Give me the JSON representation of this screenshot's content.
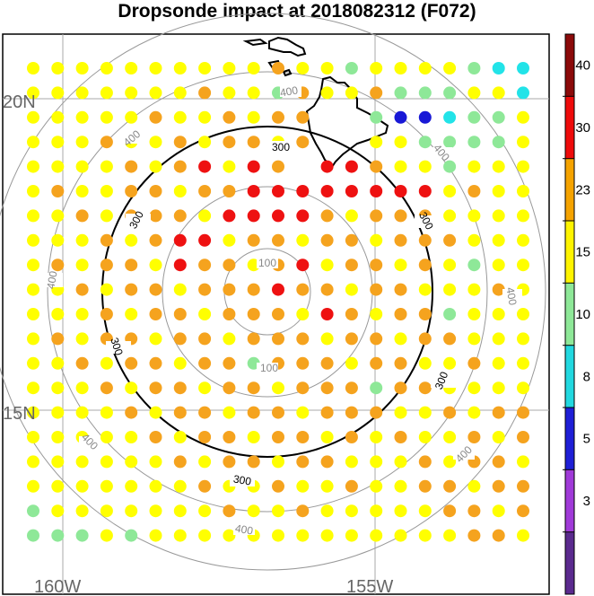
{
  "title": "Dropsonde impact at 2018082312 (F072)",
  "axes": {
    "lat_labels": [
      "20N",
      "15N"
    ],
    "lon_labels": [
      "160W",
      "155W"
    ]
  },
  "rings": {
    "labels": [
      "100",
      "300",
      "400"
    ]
  },
  "colorbar": {
    "ticks": [
      "3",
      "5",
      "8",
      "10",
      "15",
      "23",
      "30",
      "40"
    ],
    "colors": [
      "#5b2a8e",
      "#a03ad8",
      "#1f1fd6",
      "#22d8e0",
      "#8ee898",
      "#fff400",
      "#f5a300",
      "#ee0b0b",
      "#8b0a0a"
    ]
  },
  "legend_colors": {
    "yellow": "#ffff00",
    "orange": "#f5a31e",
    "red": "#ee1111",
    "green": "#8ee898",
    "cyan": "#22e3e8",
    "blue": "#1818d6"
  }
}
